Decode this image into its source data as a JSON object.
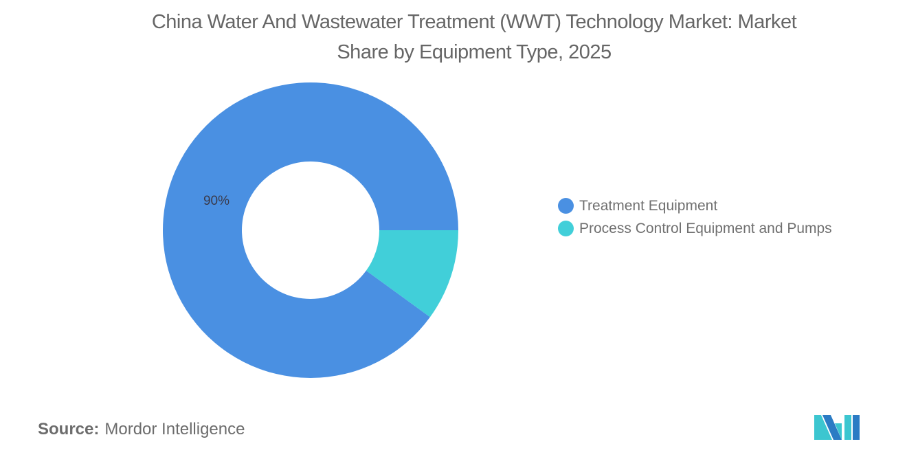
{
  "title": "China Water And Wastewater Treatment (WWT) Technology Market: Market Share by Equipment Type, 2025",
  "title_lines": [
    "China Water And Wastewater Treatment (WWT) Technology Market: Market",
    "Share by Equipment Type, 2025"
  ],
  "colors": {
    "treatment_equipment": "#4a90e2",
    "process_control": "#41cfd9",
    "text": "#666666",
    "logo_dark": "#2b7bc4",
    "logo_light": "#3cc6d0"
  },
  "legend": [
    {
      "label": "Treatment Equipment",
      "color": "#4a90e2"
    },
    {
      "label": "Process Control Equipment and Pumps",
      "color": "#41cfd9"
    }
  ],
  "data_labels": [
    {
      "text": "90%",
      "series": "Treatment Equipment"
    }
  ],
  "source": {
    "key": "Source:",
    "value": "Mordor Intelligence"
  },
  "chart_data": {
    "type": "pie",
    "variant": "donut",
    "title": "China Water And Wastewater Treatment (WWT) Technology Market: Market Share by Equipment Type, 2025",
    "categories": [
      "Treatment Equipment",
      "Process Control Equipment and Pumps"
    ],
    "values": [
      90,
      10
    ],
    "unit": "%",
    "labels_shown": {
      "Treatment Equipment": "90%"
    },
    "legend_position": "right",
    "colors": [
      "#4a90e2",
      "#41cfd9"
    ]
  }
}
